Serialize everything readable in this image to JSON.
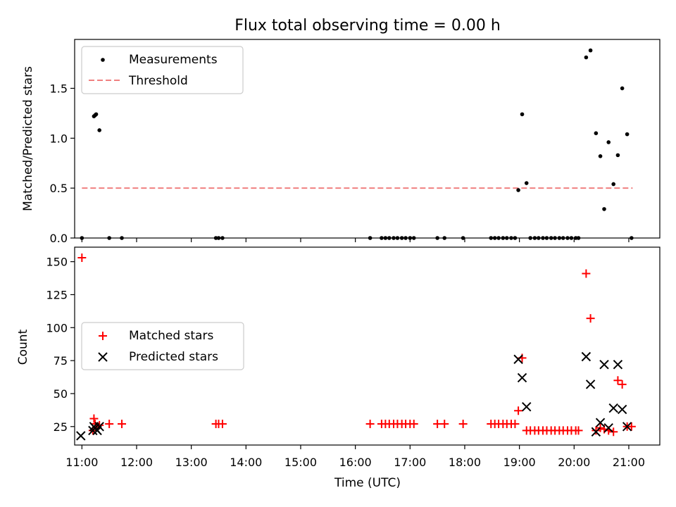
{
  "chart_data": [
    {
      "type": "scatter",
      "title": "Flux total observing time = 0.00 h",
      "xlabel": "",
      "ylabel": "Matched/Predicted stars",
      "xlim": [
        10.867,
        21.567
      ],
      "ylim": [
        0,
        1.99
      ],
      "yticks": [
        0,
        0.5,
        1,
        1.5
      ],
      "ytick_labels": [
        "0.0",
        "0.5",
        "1.0",
        "1.5"
      ],
      "legend": {
        "location": "upper-left",
        "entries": [
          "Measurements",
          "Threshold"
        ]
      },
      "series": [
        {
          "name": "Measurements",
          "marker": "dot",
          "color": "#000000",
          "x": [
            11.0,
            11.22,
            11.24,
            11.26,
            11.32,
            11.5,
            11.73,
            13.45,
            13.5,
            13.57,
            16.27,
            16.48,
            16.55,
            16.62,
            16.7,
            16.77,
            16.85,
            16.92,
            17.0,
            17.07,
            17.5,
            17.63,
            17.97,
            18.48,
            18.55,
            18.62,
            18.7,
            18.77,
            18.85,
            18.92,
            18.98,
            19.05,
            19.13,
            19.2,
            19.28,
            19.35,
            19.43,
            19.5,
            19.58,
            19.65,
            19.73,
            19.8,
            19.88,
            19.95,
            20.03,
            20.08,
            20.22,
            20.3,
            20.4,
            20.48,
            20.55,
            20.63,
            20.72,
            20.8,
            20.88,
            20.97,
            21.05
          ],
          "y": [
            0,
            1.22,
            1.23,
            1.24,
            1.08,
            0,
            0,
            0,
            0,
            0,
            0,
            0,
            0,
            0,
            0,
            0,
            0,
            0,
            0,
            0,
            0,
            0,
            0,
            0,
            0,
            0,
            0,
            0,
            0,
            0,
            0.48,
            1.24,
            0.55,
            0,
            0,
            0,
            0,
            0,
            0,
            0,
            0,
            0,
            0,
            0,
            0,
            0,
            1.81,
            1.88,
            1.05,
            0.82,
            0.29,
            0.96,
            0.54,
            0.83,
            1.5,
            1.04,
            0
          ]
        },
        {
          "name": "Threshold",
          "style": "dashed",
          "color": "#f08080",
          "x": [
            11.0,
            21.07
          ],
          "y": [
            0.5,
            0.5
          ]
        }
      ]
    },
    {
      "type": "scatter",
      "title": "",
      "xlabel": "Time (UTC)",
      "ylabel": "Count",
      "xlim": [
        10.867,
        21.567
      ],
      "ylim": [
        11,
        161
      ],
      "xticks": [
        11,
        12,
        13,
        14,
        15,
        16,
        17,
        18,
        19,
        20,
        21
      ],
      "xtick_labels": [
        "11:00",
        "12:00",
        "13:00",
        "14:00",
        "15:00",
        "16:00",
        "17:00",
        "18:00",
        "19:00",
        "20:00",
        "21:00"
      ],
      "yticks": [
        25,
        50,
        75,
        100,
        125,
        150
      ],
      "ytick_labels": [
        "25",
        "50",
        "75",
        "100",
        "125",
        "150"
      ],
      "legend": {
        "location": "center-left",
        "entries": [
          "Matched stars",
          "Predicted stars"
        ]
      },
      "series": [
        {
          "name": "Matched stars",
          "marker": "plus",
          "color": "#ff0000",
          "x": [
            11.0,
            11.2,
            11.22,
            11.24,
            11.27,
            11.32,
            11.5,
            11.73,
            13.45,
            13.5,
            13.57,
            16.27,
            16.48,
            16.55,
            16.62,
            16.7,
            16.77,
            16.85,
            16.92,
            17.0,
            17.07,
            17.5,
            17.63,
            17.97,
            18.48,
            18.55,
            18.62,
            18.7,
            18.77,
            18.85,
            18.92,
            18.98,
            19.05,
            19.13,
            19.2,
            19.28,
            19.35,
            19.43,
            19.5,
            19.58,
            19.65,
            19.73,
            19.8,
            19.88,
            19.95,
            20.03,
            20.08,
            20.22,
            20.3,
            20.4,
            20.48,
            20.55,
            20.63,
            20.72,
            20.8,
            20.88,
            20.97,
            21.05
          ],
          "y": [
            153,
            22,
            31,
            27,
            25,
            26,
            27,
            27,
            27,
            27,
            27,
            27,
            27,
            27,
            27,
            27,
            27,
            27,
            27,
            27,
            27,
            27,
            27,
            27,
            27,
            27,
            27,
            27,
            27,
            27,
            27,
            37,
            77,
            22,
            22,
            22,
            22,
            22,
            22,
            22,
            22,
            22,
            22,
            22,
            22,
            22,
            22,
            141,
            107,
            22,
            24,
            23,
            22,
            21,
            60,
            57,
            25,
            25
          ]
        },
        {
          "name": "Predicted stars",
          "marker": "x",
          "color": "#000000",
          "x": [
            10.98,
            11.2,
            11.22,
            11.24,
            11.28,
            11.32,
            18.98,
            19.05,
            19.13,
            20.22,
            20.3,
            20.4,
            20.48,
            20.55,
            20.63,
            20.72,
            20.8,
            20.88,
            20.97
          ],
          "y": [
            18,
            22,
            25,
            24,
            22,
            25,
            76,
            62,
            40,
            78,
            57,
            21,
            28,
            72,
            24,
            39,
            72,
            38,
            25
          ]
        }
      ]
    }
  ]
}
